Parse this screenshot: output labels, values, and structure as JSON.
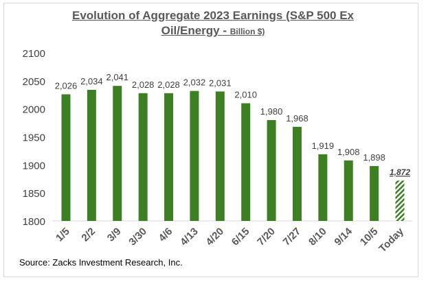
{
  "chart_data": {
    "type": "bar",
    "title": "Evolution of Aggregate 2023 Earnings (S&P 500 Ex Oil/Energy",
    "title_line1": "Evolution of Aggregate 2023 Earnings (S&P 500 Ex",
    "title_line2": "Oil/Energy - ",
    "title_unit": "Billion $)",
    "categories": [
      "1/5",
      "2/2",
      "3/9",
      "3/30",
      "4/6",
      "4/13",
      "4/20",
      "6/15",
      "7/20",
      "7/27",
      "8/10",
      "9/14",
      "10/5",
      "Today"
    ],
    "values": [
      2026,
      2034,
      2041,
      2028,
      2028,
      2032,
      2031,
      2010,
      1980,
      1968,
      1919,
      1908,
      1898,
      1872
    ],
    "data_labels": [
      "2,026",
      "2,034",
      "2,041",
      "2,028",
      "2,028",
      "2,032",
      "2,031",
      "2,010",
      "1,980",
      "1,968",
      "1,919",
      "1,908",
      "1,898",
      "1,872"
    ],
    "ylim": [
      1800,
      2100
    ],
    "yticks": [
      1800,
      1850,
      1900,
      1950,
      2000,
      2050,
      2100
    ],
    "grid": false,
    "bar_color": "#3d7f23",
    "highlight_last": "hatched",
    "xlabel": "",
    "ylabel": ""
  },
  "source": "Source: Zacks Investment Research, Inc."
}
